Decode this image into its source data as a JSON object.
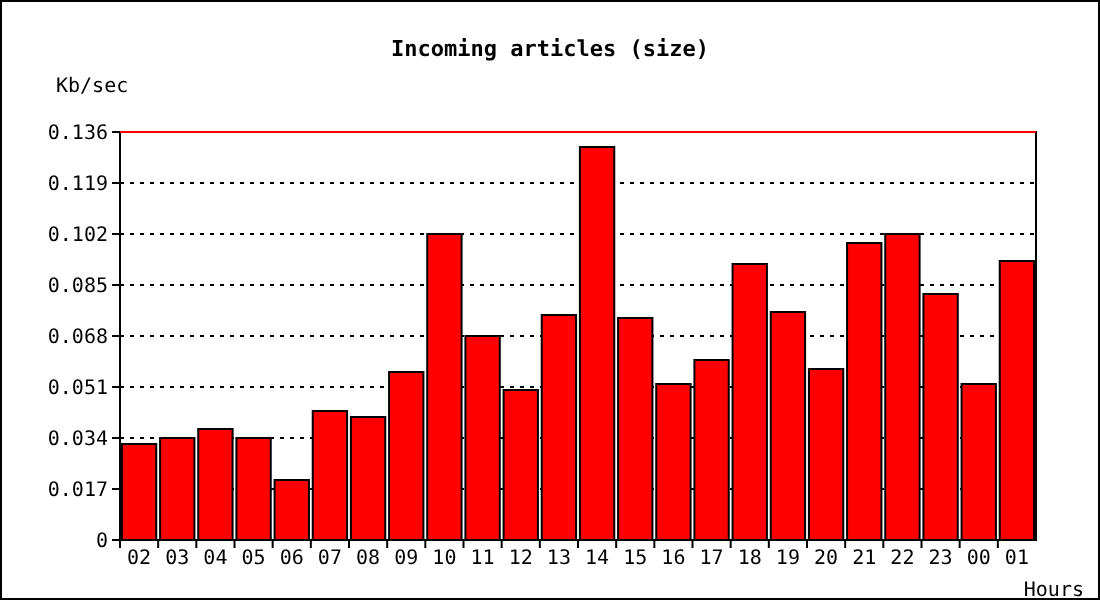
{
  "chart_data": {
    "type": "bar",
    "title": "Incoming articles (size)",
    "xlabel": "Hours",
    "ylabel": "Kb/sec",
    "categories": [
      "02",
      "03",
      "04",
      "05",
      "06",
      "07",
      "08",
      "09",
      "10",
      "11",
      "12",
      "13",
      "14",
      "15",
      "16",
      "17",
      "18",
      "19",
      "20",
      "21",
      "22",
      "23",
      "00",
      "01"
    ],
    "values": [
      0.032,
      0.034,
      0.037,
      0.034,
      0.02,
      0.043,
      0.041,
      0.056,
      0.102,
      0.068,
      0.05,
      0.075,
      0.131,
      0.074,
      0.052,
      0.06,
      0.092,
      0.076,
      0.057,
      0.099,
      0.102,
      0.082,
      0.052,
      0.093
    ],
    "color": "#ff0000",
    "ylim": [
      0,
      0.136
    ],
    "yticks": [
      0,
      0.017,
      0.034,
      0.051,
      0.068,
      0.085,
      0.102,
      0.119,
      0.136
    ],
    "grid": "y",
    "ref_lines": [
      {
        "axis": "y",
        "value": 0.136,
        "color": "#ff0000"
      }
    ]
  }
}
